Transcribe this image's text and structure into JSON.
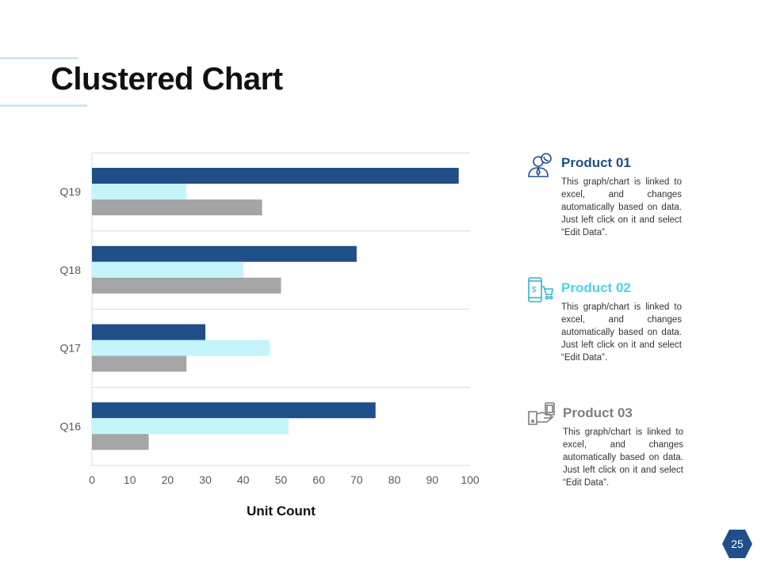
{
  "slide": {
    "title": "Clustered Chart",
    "page_number": "25"
  },
  "products": [
    {
      "title": "Product 01",
      "description": "This graph/chart is linked to excel, and changes automatically based on data. Just left click on it and select “Edit Data”.",
      "icon": "customer-service-person-icon",
      "color": "#1f4e89"
    },
    {
      "title": "Product 02",
      "description": "This graph/chart is linked to excel, and changes automatically based on data. Just left click on it and select “Edit Data”.",
      "icon": "mobile-shopping-cart-icon",
      "color": "#47d4ee"
    },
    {
      "title": "Product 03",
      "description": "This graph/chart is linked to excel, and changes automatically based on data. Just left click on it and select “Edit Data”.",
      "icon": "hand-holding-money-icon",
      "color": "#8c8c8c"
    }
  ],
  "chart_data": {
    "type": "bar",
    "orientation": "horizontal",
    "title": "",
    "xlabel": "Unit Count",
    "ylabel": "",
    "xlim": [
      0,
      100
    ],
    "x_ticks": [
      "0",
      "10",
      "20",
      "30",
      "40",
      "50",
      "60",
      "70",
      "80",
      "90",
      "100"
    ],
    "categories": [
      "Q19",
      "Q18",
      "Q17",
      "Q16"
    ],
    "series": [
      {
        "name": "Product 01",
        "color": "#1f4e89",
        "values": [
          97,
          70,
          30,
          75
        ]
      },
      {
        "name": "Product 02",
        "color": "#c3f5fb",
        "values": [
          25,
          40,
          47,
          52
        ]
      },
      {
        "name": "Product 03",
        "color": "#a5a5a5",
        "values": [
          45,
          50,
          25,
          15
        ]
      }
    ],
    "grid": true,
    "legend": "none"
  }
}
